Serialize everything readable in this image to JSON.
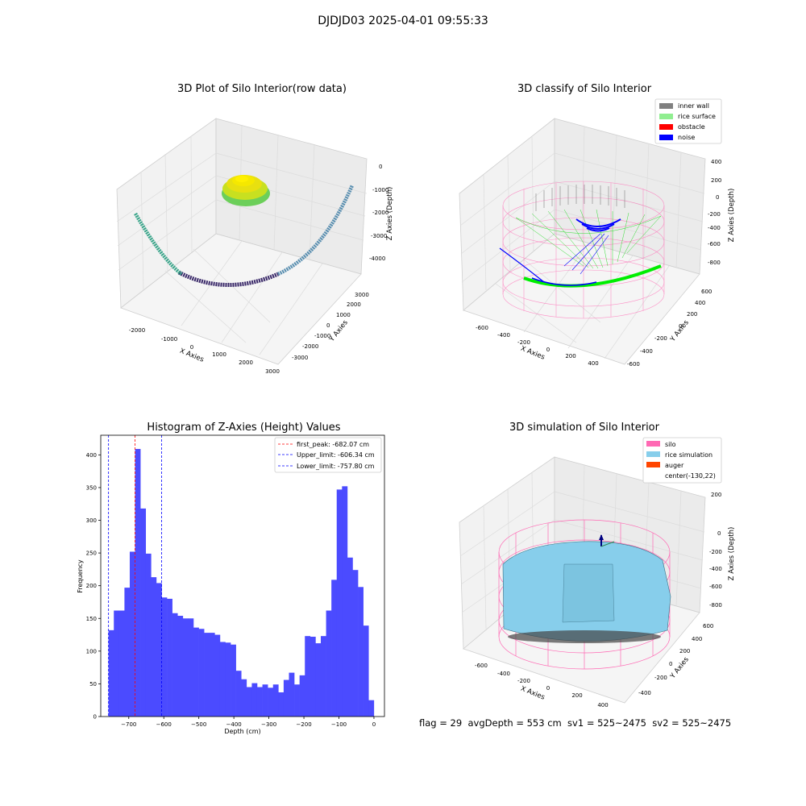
{
  "figure": {
    "suptitle": "DJDJD03 2025-04-01 09:55:33",
    "footer": "flag = 29  avgDepth = 553 cm  sv1 = 525~2475  sv2 = 525~2475"
  },
  "colors": {
    "histogram_bar": "#4b4bff",
    "peak_line": "#ff0000",
    "limit_line": "#0000ff",
    "inner_wall": "#808080",
    "rice_surface": "#90ee90",
    "obstacle": "#ff0000",
    "noise": "#0000ff",
    "silo": "#ff69b4",
    "rice_simulation": "#87ceeb",
    "auger": "#ff4500"
  },
  "panel1": {
    "title": "3D Plot of Silo Interior(row data)",
    "xlabel": "X Axies",
    "ylabel": "Y Axies",
    "zlabel": "Z Axies (Depth)",
    "xticks": [
      "-2000",
      "-1000",
      "0",
      "1000",
      "2000",
      "3000"
    ],
    "yticks": [
      "3000",
      "2000",
      "1000",
      "0",
      "-1000",
      "-2000",
      "-3000"
    ],
    "zticks": [
      "0",
      "-1000",
      "-2000",
      "-3000",
      "-4000"
    ]
  },
  "panel2": {
    "title": "3D classify of Silo Interior",
    "xlabel": "X Axies",
    "ylabel": "Y Axies",
    "zlabel": "Z Axies (Depth)",
    "xticks": [
      "-600",
      "-400",
      "-200",
      "0",
      "200",
      "400"
    ],
    "yticks": [
      "600",
      "400",
      "200",
      "0",
      "-200",
      "-400",
      "-600"
    ],
    "zticks": [
      "400",
      "200",
      "0",
      "-200",
      "-400",
      "-600",
      "-800"
    ],
    "legend": [
      "inner wall",
      "rice surface",
      "obstacle",
      "noise"
    ]
  },
  "panel4": {
    "title": "3D simulation of Silo Interior",
    "xlabel": "X Axies",
    "ylabel": "Y Axies",
    "zlabel": "Z Axies (Depth)",
    "xticks": [
      "-600",
      "-400",
      "-200",
      "0",
      "200",
      "400"
    ],
    "yticks": [
      "600",
      "400",
      "200",
      "0",
      "-200",
      "-400"
    ],
    "zticks": [
      "200",
      "0",
      "-200",
      "-400",
      "-600",
      "-800"
    ],
    "legend": [
      "silo",
      "rice simulation",
      "auger",
      "center(-130,22)"
    ]
  },
  "chart_data": [
    {
      "type": "scatter",
      "title": "3D Plot of Silo Interior(row data)",
      "xlabel": "X Axies",
      "ylabel": "Y Axies",
      "zlabel": "Z Axies (Depth)",
      "xlim": [
        -2500,
        3000
      ],
      "ylim": [
        -3000,
        3000
      ],
      "zlim": [
        -4500,
        0
      ]
    },
    {
      "type": "scatter",
      "title": "3D classify of Silo Interior",
      "xlabel": "X Axies",
      "ylabel": "Y Axies",
      "zlabel": "Z Axies (Depth)",
      "legend": [
        "inner wall",
        "rice surface",
        "obstacle",
        "noise"
      ],
      "legend_placement": "top-right"
    },
    {
      "type": "bar",
      "title": "Histogram of Z-Axies (Height) Values",
      "xlabel": "Depth (cm)",
      "ylabel": "Frequency",
      "xlim": [
        -780,
        30
      ],
      "ylim": [
        0,
        430
      ],
      "xticks": [
        -700,
        -600,
        -500,
        -400,
        -300,
        -200,
        -100,
        0
      ],
      "yticks": [
        0,
        50,
        100,
        150,
        200,
        250,
        300,
        350,
        400
      ],
      "bin_start": -757.8,
      "bin_width": 15.15,
      "values": [
        132,
        162,
        162,
        197,
        252,
        409,
        318,
        249,
        213,
        204,
        182,
        180,
        158,
        154,
        150,
        150,
        136,
        134,
        128,
        128,
        125,
        114,
        113,
        110,
        70,
        57,
        45,
        51,
        45,
        49,
        44,
        49,
        37,
        56,
        67,
        49,
        63,
        123,
        122,
        112,
        123,
        162,
        209,
        347,
        352,
        243,
        224,
        198,
        139,
        25
      ],
      "vlines": [
        {
          "label": "first_peak: -682.07 cm",
          "x": -682.07,
          "color": "#ff0000"
        },
        {
          "label": "Upper_limit: -606.34 cm",
          "x": -606.34,
          "color": "#0000ff"
        },
        {
          "label": "Lower_limit: -757.80 cm",
          "x": -757.8,
          "color": "#0000ff"
        }
      ],
      "legend_placement": "top-right"
    },
    {
      "type": "scatter",
      "title": "3D simulation of Silo Interior",
      "xlabel": "X Axies",
      "ylabel": "Y Axies",
      "zlabel": "Z Axies (Depth)",
      "legend": [
        "silo",
        "rice simulation",
        "auger",
        "center(-130,22)"
      ],
      "legend_placement": "top-right"
    }
  ]
}
